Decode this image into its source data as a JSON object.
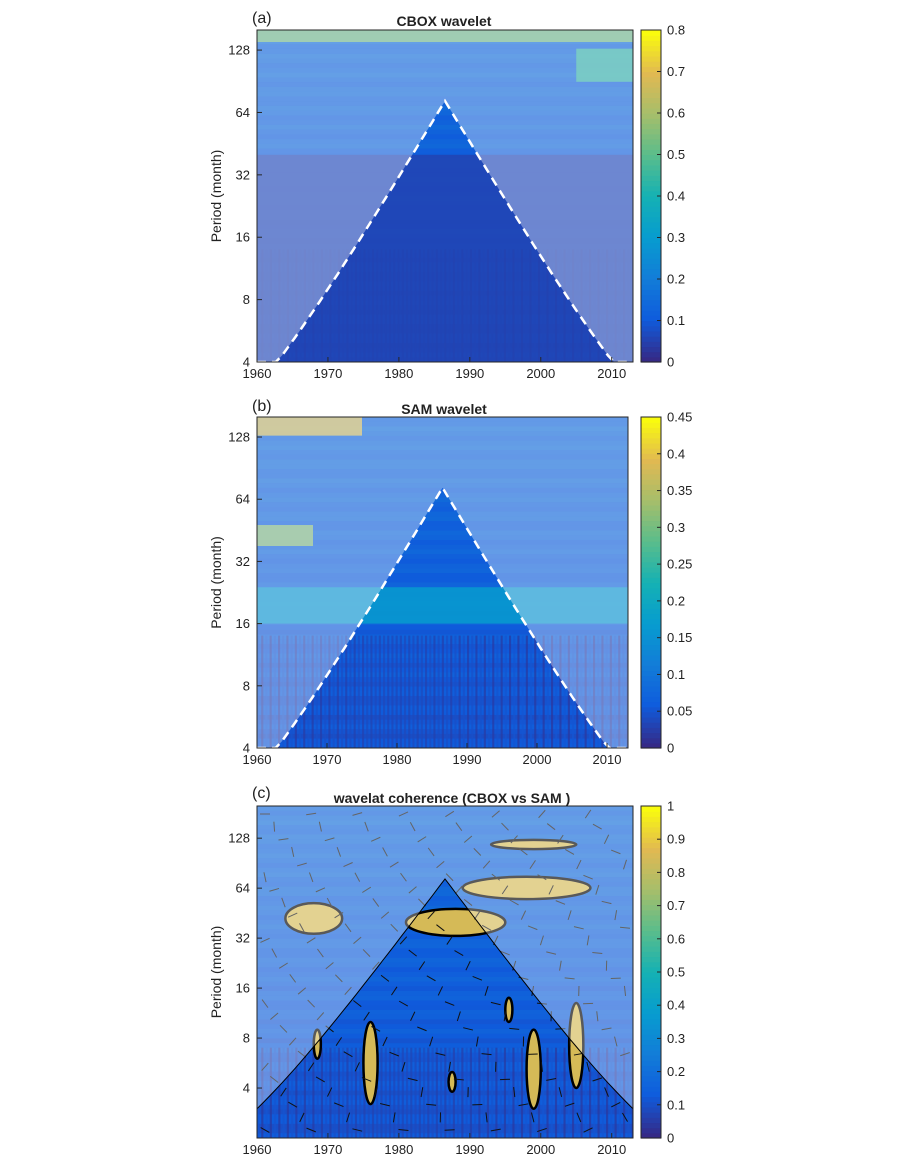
{
  "chart_data": [
    {
      "type": "heatmap",
      "panel_label": "(a)",
      "title": "CBOX wavelet",
      "ylabel": "Period (month)",
      "xlabel": "",
      "x_ticks": [
        1960,
        1970,
        1980,
        1990,
        2000,
        2010
      ],
      "y_ticks": [
        4,
        8,
        16,
        32,
        64,
        128
      ],
      "y_scale": "log2",
      "xlim": [
        1960,
        2013
      ],
      "ylim": [
        4,
        160
      ],
      "colorbar": {
        "min": 0,
        "max": 0.8,
        "ticks": [
          0,
          0.1,
          0.2,
          0.3,
          0.4,
          0.5,
          0.6,
          0.7,
          0.8
        ]
      },
      "cone_of_influence": "white dashed",
      "features": [
        {
          "x": [
            1960,
            2013
          ],
          "period": [
            140,
            160
          ],
          "value": 0.55
        },
        {
          "x": [
            2005,
            2013
          ],
          "period": [
            90,
            130
          ],
          "value": 0.45
        },
        {
          "x": [
            1960,
            2013
          ],
          "period": [
            4,
            40
          ],
          "value": 0.05
        }
      ]
    },
    {
      "type": "heatmap",
      "panel_label": "(b)",
      "title": "SAM wavelet",
      "ylabel": "Period (month)",
      "xlabel": "",
      "x_ticks": [
        1960,
        1970,
        1980,
        1990,
        2000,
        2010
      ],
      "y_ticks": [
        4,
        8,
        16,
        32,
        64,
        128
      ],
      "y_scale": "log2",
      "xlim": [
        1960,
        2013
      ],
      "ylim": [
        4,
        160
      ],
      "colorbar": {
        "min": 0,
        "max": 0.45,
        "ticks": [
          0,
          0.05,
          0.1,
          0.15,
          0.2,
          0.25,
          0.3,
          0.35,
          0.4,
          0.45
        ]
      },
      "cone_of_influence": "white dashed",
      "features": [
        {
          "x": [
            1960,
            1975
          ],
          "period": [
            130,
            160
          ],
          "value": 0.38
        },
        {
          "x": [
            1960,
            1968
          ],
          "period": [
            38,
            48
          ],
          "value": 0.32
        },
        {
          "x": [
            1960,
            2013
          ],
          "period": [
            16,
            24
          ],
          "value": 0.17
        }
      ]
    },
    {
      "type": "heatmap",
      "panel_label": "(c)",
      "title": "wavelat coherence (CBOX vs SAM )",
      "ylabel": "Period (month)",
      "xlabel": "",
      "x_ticks": [
        1960,
        1970,
        1980,
        1990,
        2000,
        2010
      ],
      "y_ticks": [
        4,
        8,
        16,
        32,
        64,
        128
      ],
      "y_scale": "log2",
      "xlim": [
        1960,
        2013
      ],
      "ylim": [
        2,
        200
      ],
      "colorbar": {
        "min": 0,
        "max": 1,
        "ticks": [
          0,
          0.1,
          0.2,
          0.3,
          0.4,
          0.5,
          0.6,
          0.7,
          0.8,
          0.9,
          1
        ]
      },
      "cone_of_influence": "black solid",
      "significant_regions": [
        {
          "x": [
            1964,
            1972
          ],
          "period": [
            34,
            52
          ]
        },
        {
          "x": [
            1981,
            1995
          ],
          "period": [
            33,
            48
          ]
        },
        {
          "x": [
            1989,
            2007
          ],
          "period": [
            55,
            75
          ]
        },
        {
          "x": [
            1993,
            2005
          ],
          "period": [
            110,
            125
          ]
        },
        {
          "x": [
            1975,
            1977
          ],
          "period": [
            3.2,
            10
          ]
        },
        {
          "x": [
            2004,
            2006
          ],
          "period": [
            4,
            13
          ]
        },
        {
          "x": [
            1995,
            1996
          ],
          "period": [
            10,
            14
          ]
        },
        {
          "x": [
            1998,
            2000
          ],
          "period": [
            3,
            9
          ]
        },
        {
          "x": [
            1968,
            1969
          ],
          "period": [
            6,
            9
          ]
        },
        {
          "x": [
            1987,
            1988
          ],
          "period": [
            3.8,
            5
          ]
        }
      ]
    }
  ]
}
